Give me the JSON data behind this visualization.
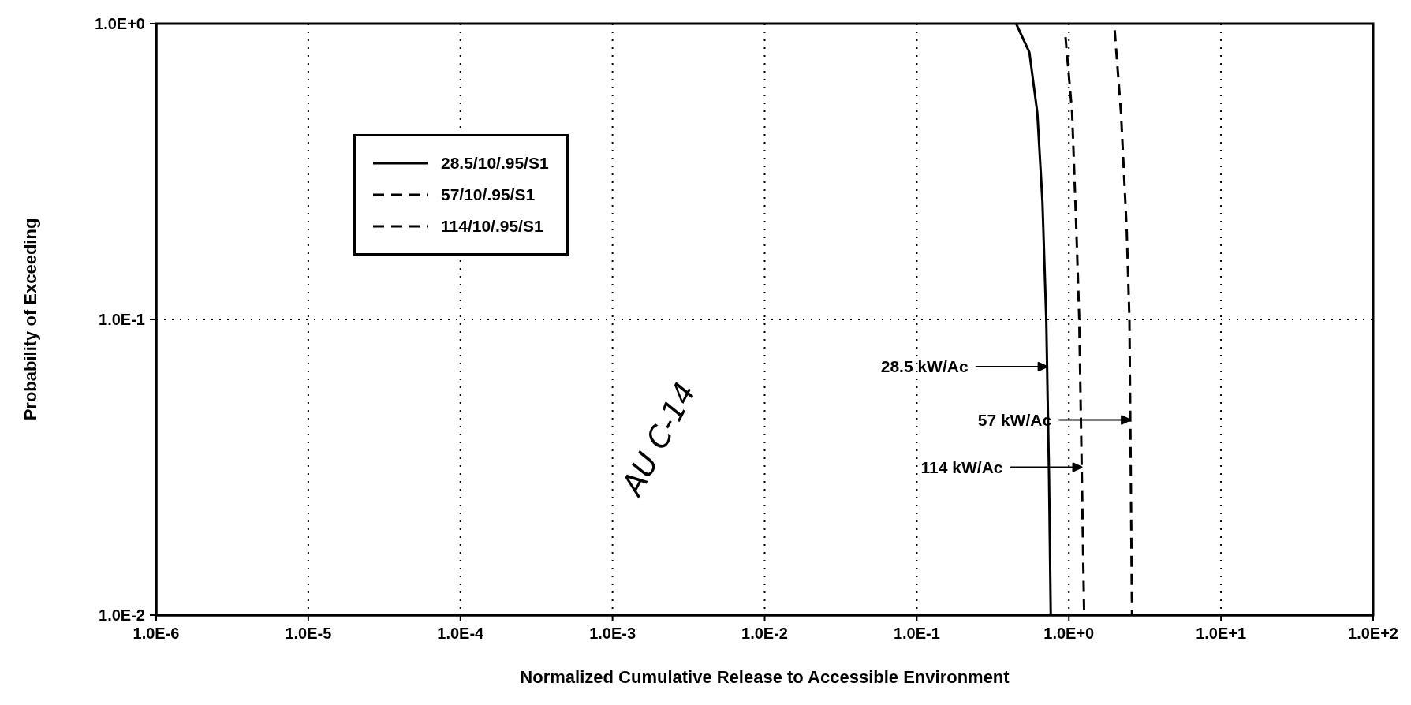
{
  "chart_data": {
    "type": "line",
    "xlabel": "Normalized Cumulative Release to Accessible Environment",
    "ylabel": "Probability of Exceeding",
    "log": "xy",
    "xlim": [
      1e-06,
      100
    ],
    "ylim": [
      0.01,
      1
    ],
    "xticks": [
      {
        "value": 1e-06,
        "label": "1.0E-6"
      },
      {
        "value": 1e-05,
        "label": "1.0E-5"
      },
      {
        "value": 0.0001,
        "label": "1.0E-4"
      },
      {
        "value": 0.001,
        "label": "1.0E-3"
      },
      {
        "value": 0.01,
        "label": "1.0E-2"
      },
      {
        "value": 0.1,
        "label": "1.0E-1"
      },
      {
        "value": 1,
        "label": "1.0E+0"
      },
      {
        "value": 10,
        "label": "1.0E+1"
      },
      {
        "value": 100,
        "label": "1.0E+2"
      }
    ],
    "yticks": [
      {
        "value": 0.01,
        "label": "1.0E-2"
      },
      {
        "value": 0.1,
        "label": "1.0E-1"
      },
      {
        "value": 1,
        "label": "1.0E+0"
      }
    ],
    "grid": true,
    "legend": "top left",
    "series": [
      {
        "name": "28.5/10/.95/S1",
        "color": "#000000",
        "line_style": "solid",
        "x": [
          0.45,
          0.55,
          0.62,
          0.67,
          0.71,
          0.74,
          0.76
        ],
        "values": [
          1,
          0.8,
          0.5,
          0.25,
          0.1,
          0.03,
          0.01
        ]
      },
      {
        "name": "57/10/.95/S1",
        "color": "#000000",
        "line_style": "dashed",
        "x": [
          2.0,
          2.2,
          2.4,
          2.5,
          2.6
        ],
        "values": [
          0.95,
          0.5,
          0.2,
          0.1,
          0.01
        ]
      },
      {
        "name": "114/10/.95/S1",
        "color": "#000000",
        "line_style": "dashed",
        "x": [
          0.95,
          1.05,
          1.12,
          1.17,
          1.26
        ],
        "values": [
          0.9,
          0.5,
          0.2,
          0.1,
          0.01
        ]
      }
    ],
    "annotations": [
      "28.5 kW/Ac",
      "57 kW/Ac",
      "114 kW/Ac",
      "AU C-14"
    ]
  }
}
